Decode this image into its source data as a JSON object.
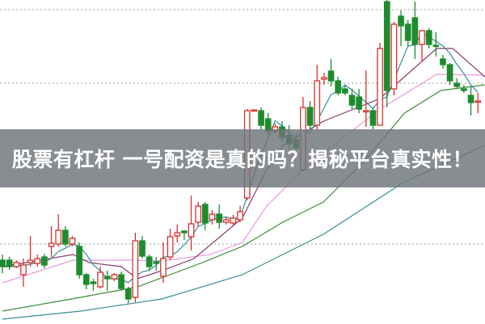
{
  "title": "股票有杠杆 一号配资是真的吗？揭秘平台真实性！",
  "chart_data": {
    "type": "candlestick",
    "grid": true,
    "legend": "none",
    "colors": {
      "up": "#d9302c",
      "down": "#1e8c2e",
      "ma5": "#2f8f9f",
      "ma10": "#8b3a6e",
      "ma20": "#e89be0",
      "ma30": "#3e8a3a",
      "ma60": "#3a8c96"
    },
    "ylim": [
      0,
      100
    ],
    "candles": [
      [
        19.5,
        21.25,
        15.5,
        17.5
      ],
      [
        19.5,
        20.5,
        16.5,
        17.5
      ],
      [
        17.5,
        19.5,
        17,
        18.75
      ],
      [
        15,
        20,
        11.25,
        18
      ],
      [
        18.75,
        27,
        17.5,
        19.5
      ],
      [
        18.5,
        21.25,
        17.5,
        20
      ],
      [
        20.5,
        21.5,
        17,
        18
      ],
      [
        23.75,
        30,
        20.5,
        24.75
      ],
      [
        24.5,
        33.75,
        23.75,
        28.75
      ],
      [
        28.75,
        30,
        23.75,
        24.5
      ],
      [
        24.5,
        27,
        23.75,
        26.25
      ],
      [
        23.75,
        25,
        13.75,
        15
      ],
      [
        15,
        15.5,
        10.5,
        12
      ],
      [
        12.75,
        13.75,
        10,
        12.25
      ],
      [
        11.25,
        17.5,
        10.75,
        15.75
      ],
      [
        14.5,
        16.25,
        10,
        13.75
      ],
      [
        13.75,
        15.5,
        13,
        15
      ],
      [
        15,
        16,
        10,
        10.75
      ],
      [
        10.5,
        11.25,
        6.25,
        7.5
      ],
      [
        8,
        28,
        6.5,
        25.5
      ],
      [
        25.5,
        27,
        20,
        20.75
      ],
      [
        20.5,
        21.25,
        16.25,
        17.5
      ],
      [
        19,
        20.5,
        16.25,
        18.5
      ],
      [
        14.5,
        25,
        12.5,
        20
      ],
      [
        20.5,
        29.25,
        19.5,
        26.75
      ],
      [
        27,
        30.5,
        25,
        28
      ],
      [
        28.5,
        28.75,
        25.75,
        28
      ],
      [
        26.75,
        39.5,
        22.5,
        30.75
      ],
      [
        31.25,
        37.5,
        30,
        36.25
      ],
      [
        36.75,
        37.5,
        28.75,
        31
      ],
      [
        32,
        35,
        30.5,
        33.75
      ],
      [
        33.75,
        36.75,
        29.25,
        31.25
      ],
      [
        31.25,
        33,
        30.5,
        32
      ],
      [
        31,
        33.5,
        30,
        32.5
      ],
      [
        32,
        36.25,
        31.25,
        34.5
      ],
      [
        38.75,
        66.25,
        38,
        65.75
      ],
      [
        65.75,
        66,
        65.5,
        66
      ],
      [
        65.75,
        66.75,
        60,
        61.25
      ],
      [
        63.25,
        65,
        58.25,
        59.5
      ],
      [
        59.5,
        61.75,
        58.75,
        60.75
      ],
      [
        60.75,
        62.5,
        56.25,
        57.5
      ],
      [
        58,
        61.25,
        53.75,
        55.5
      ],
      [
        56.75,
        58.75,
        52.5,
        54.25
      ],
      [
        47.5,
        70,
        47,
        66.75
      ],
      [
        66.75,
        68.75,
        60,
        61.25
      ],
      [
        61.25,
        80,
        60,
        75
      ],
      [
        75.5,
        77.5,
        73.75,
        76
      ],
      [
        78,
        81.75,
        73.25,
        75
      ],
      [
        75,
        76.25,
        70.5,
        71.25
      ],
      [
        72.5,
        73.75,
        70.5,
        71.25
      ],
      [
        70.5,
        72.5,
        66.25,
        67.5
      ],
      [
        70,
        72.5,
        65,
        66.25
      ],
      [
        65.5,
        78.25,
        60.75,
        65.75
      ],
      [
        65.75,
        66.75,
        60,
        61.25
      ],
      [
        61.25,
        86.75,
        61.25,
        85
      ],
      [
        99.5,
        100,
        66.75,
        72
      ],
      [
        72.5,
        93.25,
        70.5,
        92.5
      ],
      [
        95,
        96.75,
        85.75,
        92
      ],
      [
        92.5,
        93.75,
        85.5,
        87.5
      ],
      [
        94.5,
        99.5,
        81.75,
        86.25
      ],
      [
        86.25,
        90.75,
        81.25,
        90.5
      ],
      [
        90.5,
        91.25,
        85,
        86.25
      ],
      [
        86,
        90,
        82.5,
        85.75
      ],
      [
        81.75,
        83,
        78.75,
        80
      ],
      [
        80,
        80.5,
        73.75,
        75
      ],
      [
        74.25,
        75.75,
        72.5,
        73.25
      ],
      [
        72.5,
        73.75,
        71.25,
        72
      ],
      [
        70.5,
        73.25,
        64.25,
        68.25
      ],
      [
        68.5,
        71.25,
        65,
        68.75
      ]
    ],
    "moving_averages": {
      "ma10": [
        [
          0,
          17.5
        ],
        [
          10.1,
          21.25
        ],
        [
          12.4,
          18.75
        ],
        [
          17,
          17.5
        ],
        [
          19.3,
          13.75
        ],
        [
          22.8,
          16.25
        ],
        [
          27.4,
          20
        ],
        [
          34.3,
          32.5
        ],
        [
          37.8,
          47.5
        ],
        [
          40.1,
          55
        ],
        [
          45.9,
          62.5
        ],
        [
          51.7,
          67.5
        ],
        [
          54,
          69.5
        ],
        [
          57.5,
          76.25
        ],
        [
          62.1,
          85
        ],
        [
          64.4,
          85
        ],
        [
          69,
          76.25
        ]
      ],
      "ma20": [
        [
          0,
          12.5
        ],
        [
          10.1,
          19.5
        ],
        [
          18.2,
          19.5
        ],
        [
          22.8,
          19.25
        ],
        [
          29.7,
          21.25
        ],
        [
          34.3,
          25
        ],
        [
          37.8,
          36.25
        ],
        [
          43.6,
          48.75
        ],
        [
          54,
          66.25
        ],
        [
          62.1,
          77
        ],
        [
          69,
          76.75
        ]
      ],
      "ma30": [
        [
          0,
          3.75
        ],
        [
          11.2,
          8
        ],
        [
          19.3,
          11.25
        ],
        [
          28.6,
          18.75
        ],
        [
          34.3,
          23.75
        ],
        [
          40.1,
          31.25
        ],
        [
          45.9,
          37.5
        ],
        [
          51.7,
          50
        ],
        [
          57.5,
          65
        ],
        [
          62.7,
          72
        ],
        [
          69,
          73.75
        ]
      ],
      "ma60": [
        [
          0,
          1.25
        ],
        [
          11.2,
          3.75
        ],
        [
          22.8,
          7.5
        ],
        [
          34.3,
          15
        ],
        [
          45.9,
          27.5
        ],
        [
          57.5,
          43.75
        ],
        [
          69,
          55
        ]
      ]
    },
    "gridlines": [
      97,
      74.25,
      24.5
    ]
  }
}
